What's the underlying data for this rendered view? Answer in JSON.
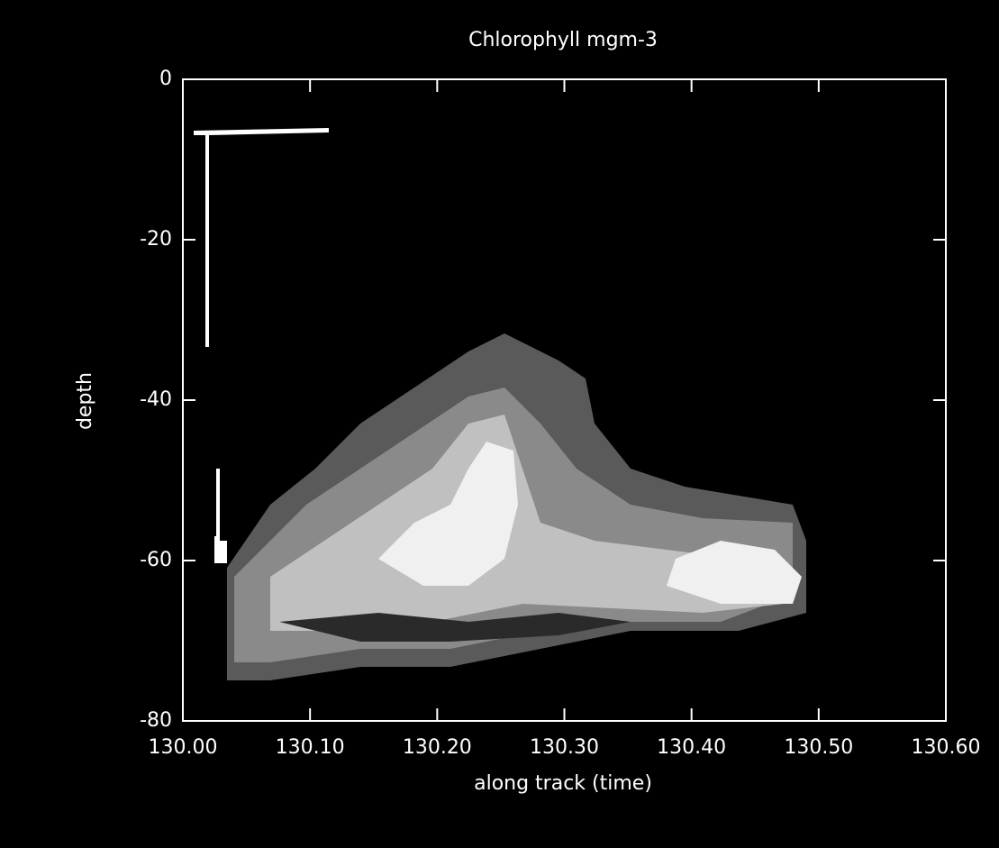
{
  "chart_data": {
    "type": "contour",
    "title": "Chlorophyll mgm-3",
    "xlabel": "along track (time)",
    "ylabel": "depth",
    "xlim": [
      130.0,
      130.6
    ],
    "xticks": [
      {
        "value": 130.0,
        "label": "130.00"
      },
      {
        "value": 130.1,
        "label": "130.10"
      },
      {
        "value": 130.2,
        "label": "130.20"
      },
      {
        "value": 130.3,
        "label": "130.30"
      },
      {
        "value": 130.4,
        "label": "130.40"
      },
      {
        "value": 130.5,
        "label": "130.50"
      },
      {
        "value": 130.6,
        "label": "130.60"
      }
    ],
    "ylim": [
      -80,
      0
    ],
    "yticks": [
      0,
      -20,
      -40,
      -60,
      -80
    ],
    "color": "#ffffff"
  }
}
